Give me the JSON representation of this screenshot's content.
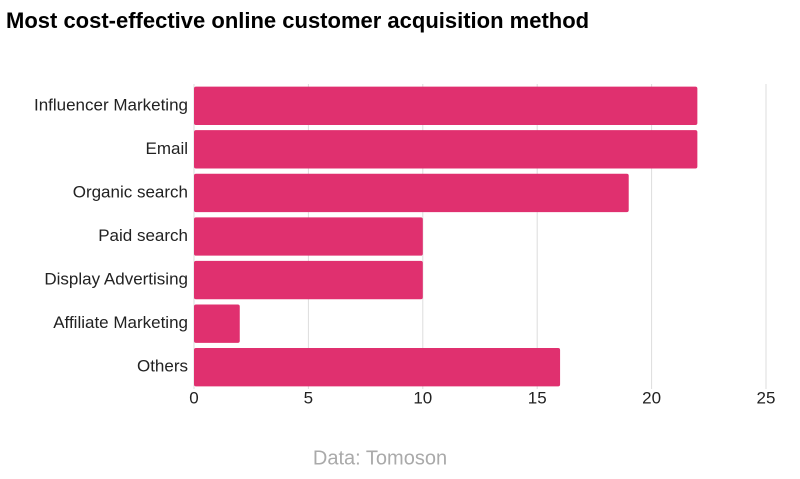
{
  "chart_data": {
    "type": "bar",
    "orientation": "horizontal",
    "title": "Most cost-effective online customer acquisition method",
    "categories": [
      "Influencer Marketing",
      "Email",
      "Organic search",
      "Paid search",
      "Display Advertising",
      "Affiliate Marketing",
      "Others"
    ],
    "values": [
      22,
      22,
      19,
      10,
      10,
      2,
      16
    ],
    "color": "#e0306f",
    "xlim": [
      0,
      25
    ],
    "xticks": [
      0,
      5,
      10,
      15,
      20,
      25
    ],
    "grid": true,
    "source": "Data: Tomoson"
  }
}
